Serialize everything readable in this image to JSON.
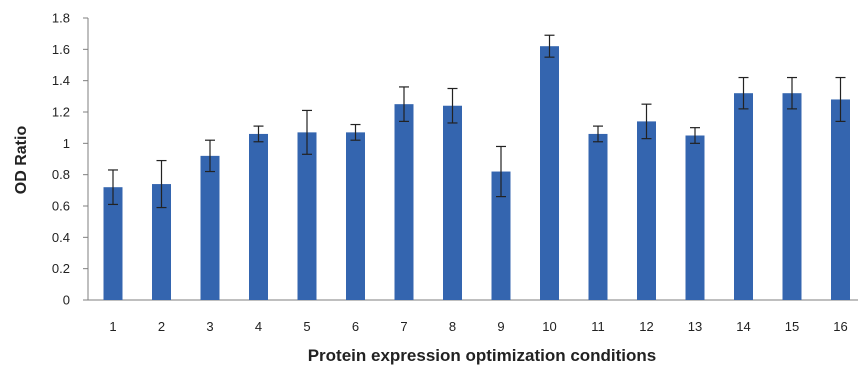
{
  "chart_data": {
    "type": "bar",
    "title": "",
    "xlabel": "Protein expression optimization conditions",
    "ylabel": "OD Ratio",
    "categories": [
      "1",
      "2",
      "3",
      "4",
      "5",
      "6",
      "7",
      "8",
      "9",
      "10",
      "11",
      "12",
      "13",
      "14",
      "15",
      "16"
    ],
    "values": [
      0.72,
      0.74,
      0.92,
      1.06,
      1.07,
      1.07,
      1.25,
      1.24,
      0.82,
      1.62,
      1.06,
      1.14,
      1.05,
      1.32,
      1.32,
      1.28
    ],
    "errors": [
      0.11,
      0.15,
      0.1,
      0.05,
      0.14,
      0.05,
      0.11,
      0.11,
      0.16,
      0.07,
      0.05,
      0.11,
      0.05,
      0.1,
      0.1,
      0.14
    ],
    "ylim": [
      0,
      1.8
    ],
    "yticks": [
      0,
      0.2,
      0.4,
      0.6,
      0.8,
      1,
      1.2,
      1.4,
      1.6,
      1.8
    ],
    "ytick_labels": [
      "0",
      "0.2",
      "0.4",
      "0.6",
      "0.8",
      "1",
      "1.2",
      "1.4",
      "1.6",
      "1.8"
    ],
    "grid": false,
    "legend": "none",
    "bar_color": "#3465af",
    "error_bar_color": "#222222",
    "axis_color": "#7f7f7f"
  }
}
